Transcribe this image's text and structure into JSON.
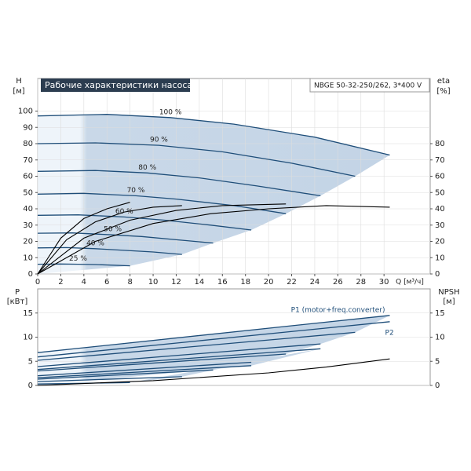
{
  "chart_data": [
    {
      "type": "line",
      "title": "Рабочие характеристики насоса",
      "subtitle": "NBGE 50-32-250/262, 3*400 V",
      "y_label": "H",
      "y_unit": "[м]",
      "y2_label": "eta",
      "y2_unit": "[%]",
      "x_label": "Q [м³/ч]",
      "xlim": [
        0,
        34
      ],
      "xticks": [
        0,
        2,
        4,
        6,
        8,
        10,
        12,
        14,
        16,
        18,
        20,
        22,
        24,
        26,
        28,
        30
      ],
      "ylim": [
        0,
        120
      ],
      "yticks": [
        0,
        10,
        20,
        30,
        40,
        50,
        60,
        70,
        80,
        90,
        100
      ],
      "y2lim": [
        0,
        120
      ],
      "y2ticks": [
        0,
        10,
        20,
        30,
        40,
        50,
        60,
        70,
        80
      ],
      "grid": true,
      "series": [
        {
          "name": "100 %",
          "color": "#1f4e79",
          "x": [
            0,
            6,
            11.5,
            17,
            24,
            30.5
          ],
          "values": [
            97,
            98,
            96,
            92,
            84,
            73
          ]
        },
        {
          "name": "90 %",
          "color": "#1f4e79",
          "x": [
            0,
            5,
            10.5,
            16,
            22,
            27.5
          ],
          "values": [
            80,
            80.5,
            79,
            75,
            68,
            60
          ]
        },
        {
          "name": "80 %",
          "color": "#1f4e79",
          "x": [
            0,
            5,
            9.5,
            14,
            19,
            24.5
          ],
          "values": [
            63,
            63.5,
            62,
            59,
            54,
            48
          ]
        },
        {
          "name": "70 %",
          "color": "#1f4e79",
          "x": [
            0,
            4,
            8.5,
            12,
            17,
            21.5
          ],
          "values": [
            49,
            49.5,
            48,
            46,
            42,
            37
          ]
        },
        {
          "name": "60 %",
          "color": "#1f4e79",
          "x": [
            0,
            3.5,
            7.5,
            11,
            15,
            18.5
          ],
          "values": [
            36,
            36.3,
            35,
            33,
            30,
            27
          ]
        },
        {
          "name": "50 %",
          "color": "#1f4e79",
          "x": [
            0,
            3,
            6.5,
            9,
            12,
            15.2
          ],
          "values": [
            25,
            25.2,
            24,
            23,
            21,
            19
          ]
        },
        {
          "name": "40 %",
          "color": "#1f4e79",
          "x": [
            0,
            2.5,
            5,
            7.5,
            10,
            12.5
          ],
          "values": [
            16,
            16.2,
            15.5,
            14.5,
            13.5,
            12
          ]
        },
        {
          "name": "25 %",
          "color": "#1f4e79",
          "x": [
            0,
            2,
            3.5,
            5,
            6.5,
            8
          ],
          "values": [
            6,
            6.1,
            6,
            5.8,
            5.4,
            5
          ]
        },
        {
          "color": "#000000",
          "axis": "y2",
          "x": [
            0,
            5,
            10,
            15,
            20,
            25,
            30.5
          ],
          "values": [
            0,
            20,
            31,
            37,
            40,
            42,
            41
          ]
        },
        {
          "color": "#000000",
          "axis": "y2",
          "x": [
            0,
            4,
            8,
            12,
            16,
            21.5
          ],
          "values": [
            0,
            22,
            33,
            39,
            42,
            43
          ]
        },
        {
          "color": "#000000",
          "axis": "y2",
          "x": [
            0,
            2.5,
            5,
            7.5,
            10,
            12.5
          ],
          "values": [
            0,
            21,
            32,
            38,
            41,
            42
          ]
        },
        {
          "color": "#000000",
          "axis": "y2",
          "x": [
            0,
            2,
            4,
            6,
            8
          ],
          "values": [
            0,
            22,
            34,
            40,
            44
          ]
        }
      ]
    },
    {
      "type": "line",
      "y_label": "P",
      "y_unit": "[кВт]",
      "y2_label": "NPSH",
      "y2_unit": "[м]",
      "xlim": [
        0,
        34
      ],
      "ylim": [
        0,
        20
      ],
      "yticks": [
        0,
        5,
        10,
        15
      ],
      "y2lim": [
        0,
        20
      ],
      "y2ticks": [
        0,
        5,
        10,
        15
      ],
      "grid": true,
      "series": [
        {
          "name": "P1 (motor+freq.converter)",
          "color": "#1f4e79",
          "x": [
            0,
            30.5
          ],
          "values": [
            6.8,
            14.5
          ]
        },
        {
          "color": "#1f4e79",
          "x": [
            0,
            27.5
          ],
          "values": [
            5.2,
            11
          ]
        },
        {
          "color": "#1f4e79",
          "x": [
            0,
            24.5
          ],
          "values": [
            3.9,
            8.6
          ]
        },
        {
          "color": "#1f4e79",
          "x": [
            0,
            21.5
          ],
          "values": [
            3,
            6.5
          ]
        },
        {
          "color": "#1f4e79",
          "x": [
            0,
            18.5
          ],
          "values": [
            2,
            4.8
          ]
        },
        {
          "color": "#1f4e79",
          "x": [
            0,
            15.2
          ],
          "values": [
            1.3,
            3.2
          ]
        },
        {
          "color": "#1f4e79",
          "x": [
            0,
            12.5
          ],
          "values": [
            0.8,
            1.8
          ]
        },
        {
          "color": "#1f4e79",
          "x": [
            0,
            8
          ],
          "values": [
            0.3,
            0.6
          ]
        },
        {
          "name": "P2",
          "color": "#1f4e79",
          "x": [
            0,
            30.5
          ],
          "values": [
            5.9,
            13.2
          ]
        },
        {
          "color": "#1f4e79",
          "x": [
            0,
            24.5
          ],
          "values": [
            3.3,
            7.6
          ]
        },
        {
          "color": "#1f4e79",
          "x": [
            0,
            18.5
          ],
          "values": [
            1.6,
            4.1
          ]
        },
        {
          "color": "#000000",
          "axis": "y2",
          "x": [
            0,
            10,
            20,
            25,
            30.5
          ],
          "values": [
            0,
            1,
            2.6,
            3.8,
            5.5
          ]
        }
      ]
    }
  ]
}
